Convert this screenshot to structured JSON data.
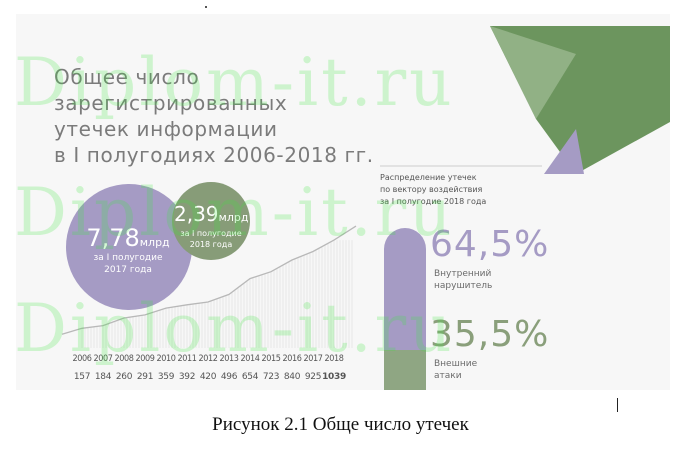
{
  "infographic": {
    "title_lines": [
      "Общее число зарегистрированных",
      "утечек информации",
      "в I полугодиях 2006-2018 гг."
    ],
    "bubble_2017": {
      "value": "7,78",
      "unit": "млрд",
      "subtitle_1": "за I полугодие",
      "subtitle_2": "2017 года"
    },
    "bubble_2018": {
      "value": "2,39",
      "unit": "млрд",
      "subtitle_1": "за I полугодие",
      "subtitle_2": "2018 года"
    },
    "distribution": {
      "title_lines": [
        "Распределение утечек",
        "по вектору воздействия",
        "за I полугодие 2018 года"
      ],
      "inner_pct": "64,5%",
      "inner_label_lines": [
        "Внутренний",
        "нарушитель"
      ],
      "external_pct": "35,5%",
      "external_label_lines": [
        "Внешние",
        "атаки"
      ]
    },
    "colors": {
      "purple": "#a59bc4",
      "green": "#879c78",
      "dark_green": "#4f7f3f"
    }
  },
  "watermark": "Diplom-it.ru",
  "caption": "Рисунок 2.1 Обще число утечек",
  "chart_data": {
    "type": "line",
    "x": [
      "2006",
      "2007",
      "2008",
      "2009",
      "2010",
      "2011",
      "2012",
      "2013",
      "2014",
      "2015",
      "2016",
      "2017",
      "2018"
    ],
    "series": [
      {
        "values": [
          157,
          184,
          260,
          291,
          359,
          392,
          420,
          496,
          654,
          723,
          840,
          925,
          1039
        ]
      }
    ],
    "bold_last_value": true,
    "ylim": [
      0,
      1100
    ]
  }
}
